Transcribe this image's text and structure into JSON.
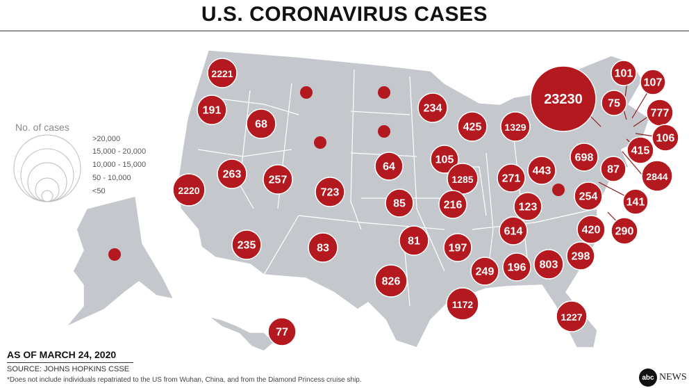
{
  "title": "U.S. CORONAVIRUS CASES",
  "legend": {
    "title": "No. of cases",
    "items": [
      ">20,000",
      "15,000 - 20,000",
      "10,000 - 15,000",
      "50 - 10,000",
      "<50"
    ]
  },
  "colors": {
    "bubble": "#b3191e",
    "land": "#c4c7cc",
    "border": "#ffffff",
    "leader": "#8b1a1a"
  },
  "bubbles": [
    {
      "label": "2221"
    },
    {
      "label": "191"
    },
    {
      "label": "68"
    },
    {
      "label": ""
    },
    {
      "label": ""
    },
    {
      "label": ""
    },
    {
      "label": ""
    },
    {
      "label": "234"
    },
    {
      "label": "425"
    },
    {
      "label": "1329"
    },
    {
      "label": "23230"
    },
    {
      "label": "101"
    },
    {
      "label": "107"
    },
    {
      "label": "75"
    },
    {
      "label": "777"
    },
    {
      "label": "106"
    },
    {
      "label": "415"
    },
    {
      "label": "2844"
    },
    {
      "label": "698"
    },
    {
      "label": "87"
    },
    {
      "label": "141"
    },
    {
      "label": "290"
    },
    {
      "label": "263"
    },
    {
      "label": "257"
    },
    {
      "label": "2220"
    },
    {
      "label": "723"
    },
    {
      "label": "64"
    },
    {
      "label": "105"
    },
    {
      "label": "1285"
    },
    {
      "label": "271"
    },
    {
      "label": "443"
    },
    {
      "label": ""
    },
    {
      "label": "254"
    },
    {
      "label": "85"
    },
    {
      "label": "216"
    },
    {
      "label": "123"
    },
    {
      "label": "235"
    },
    {
      "label": "83"
    },
    {
      "label": "81"
    },
    {
      "label": "197"
    },
    {
      "label": "614"
    },
    {
      "label": "420"
    },
    {
      "label": "298"
    },
    {
      "label": "249"
    },
    {
      "label": "196"
    },
    {
      "label": "803"
    },
    {
      "label": "826"
    },
    {
      "label": "1172"
    },
    {
      "label": "1227"
    },
    {
      "label": "77"
    },
    {
      "label": ""
    }
  ],
  "footer": {
    "date": "AS OF MARCH 24, 2020",
    "source": "SOURCE: JOHNS HOPKINS CSSE",
    "note": "*Does not include individuals repatriated to the US from Wuhan, China, and from the Diamond Princess cruise ship."
  },
  "logo": {
    "mark": "abc",
    "word": "NEWS"
  }
}
